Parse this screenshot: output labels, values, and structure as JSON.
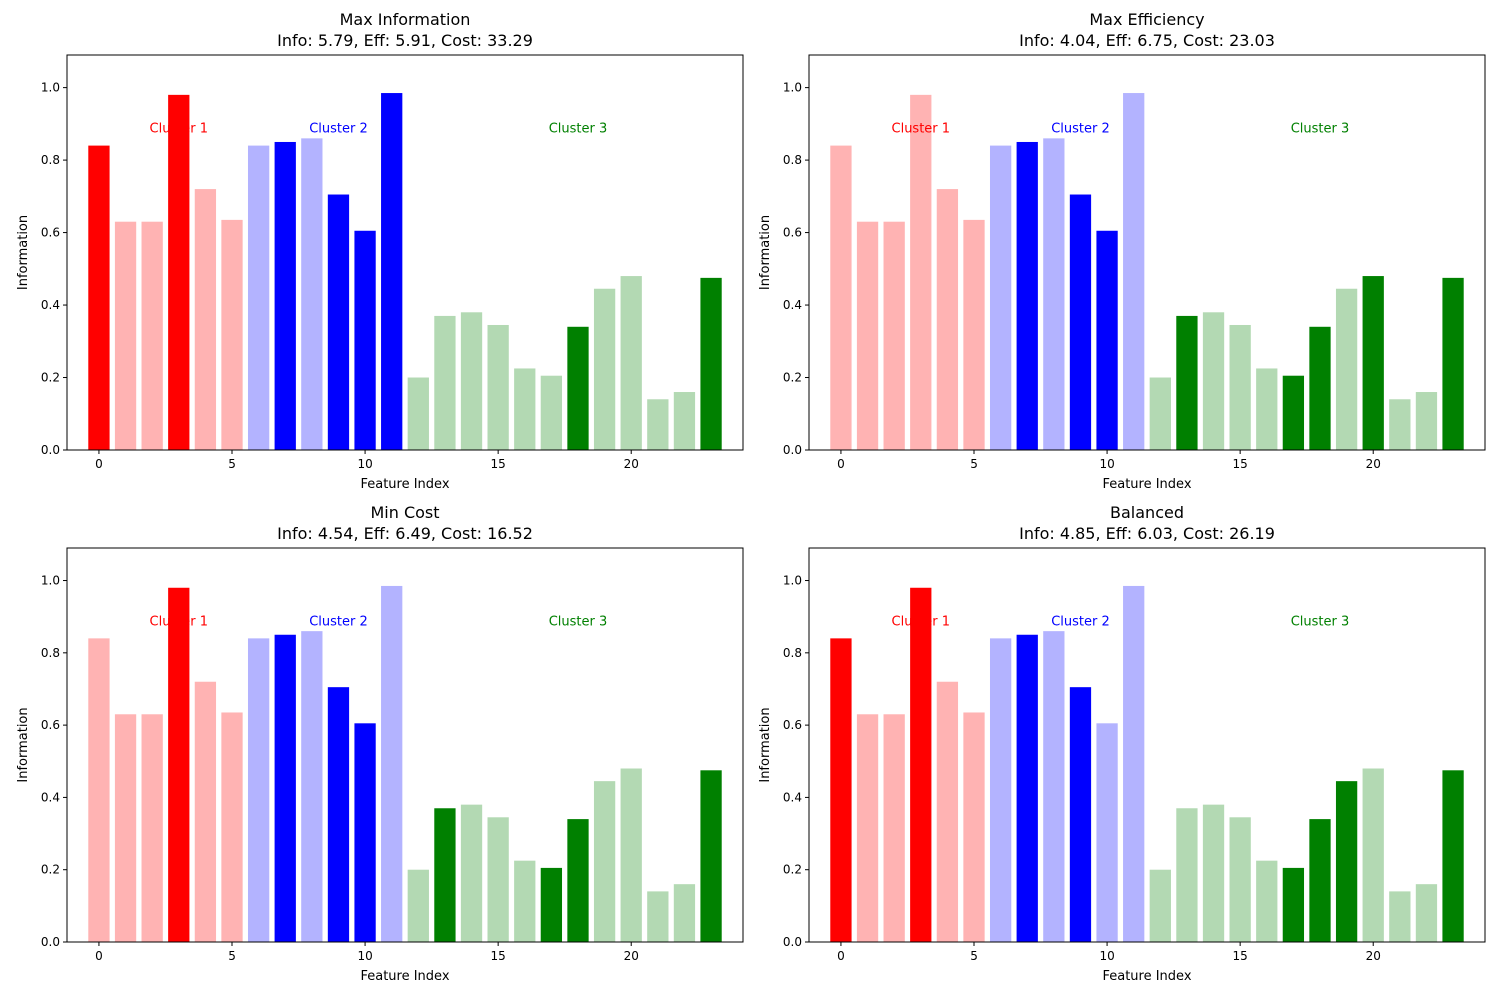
{
  "colors": {
    "cluster_1": {
      "selected": "#ff0000",
      "unselected": "#ffb3b3"
    },
    "cluster_2": {
      "selected": "#0000ff",
      "unselected": "#b3b3ff"
    },
    "cluster_3": {
      "selected": "#008000",
      "unselected": "#b3d9b3"
    }
  },
  "chart_data": [
    {
      "type": "bar",
      "title": "Max Information",
      "subtitle": "Info: 5.79, Eff: 5.91, Cost: 33.29",
      "xlabel": "Feature Index",
      "ylabel": "Information",
      "xlim": [
        -1.2,
        24.2
      ],
      "ylim": [
        0,
        1.09
      ],
      "xticks": [
        0,
        5,
        10,
        15,
        20
      ],
      "yticks": [
        "0.0",
        "0.2",
        "0.4",
        "0.6",
        "0.8",
        "1.0"
      ],
      "x": [
        0,
        1,
        2,
        3,
        4,
        5,
        6,
        7,
        8,
        9,
        10,
        11,
        12,
        13,
        14,
        15,
        16,
        17,
        18,
        19,
        20,
        21,
        22,
        23
      ],
      "values": [
        0.84,
        0.63,
        0.63,
        0.98,
        0.72,
        0.635,
        0.84,
        0.85,
        0.86,
        0.705,
        0.605,
        0.985,
        0.2,
        0.37,
        0.38,
        0.345,
        0.225,
        0.205,
        0.34,
        0.445,
        0.48,
        0.14,
        0.16,
        0.475
      ],
      "clusters": [
        1,
        1,
        1,
        1,
        1,
        1,
        2,
        2,
        2,
        2,
        2,
        2,
        3,
        3,
        3,
        3,
        3,
        3,
        3,
        3,
        3,
        3,
        3,
        3
      ],
      "selected": [
        1,
        0,
        0,
        1,
        0,
        0,
        0,
        1,
        0,
        1,
        1,
        1,
        0,
        0,
        0,
        0,
        0,
        0,
        1,
        0,
        0,
        0,
        0,
        1
      ],
      "annotations": [
        {
          "text": "Cluster 1",
          "cluster": 1,
          "x": 3,
          "y": 0.89
        },
        {
          "text": "Cluster 2",
          "cluster": 2,
          "x": 9,
          "y": 0.89
        },
        {
          "text": "Cluster 3",
          "cluster": 3,
          "x": 18,
          "y": 0.89
        }
      ],
      "grid": false
    },
    {
      "type": "bar",
      "title": "Max Efficiency",
      "subtitle": "Info: 4.04, Eff: 6.75, Cost: 23.03",
      "xlabel": "Feature Index",
      "ylabel": "Information",
      "xlim": [
        -1.2,
        24.2
      ],
      "ylim": [
        0,
        1.09
      ],
      "xticks": [
        0,
        5,
        10,
        15,
        20
      ],
      "yticks": [
        "0.0",
        "0.2",
        "0.4",
        "0.6",
        "0.8",
        "1.0"
      ],
      "x": [
        0,
        1,
        2,
        3,
        4,
        5,
        6,
        7,
        8,
        9,
        10,
        11,
        12,
        13,
        14,
        15,
        16,
        17,
        18,
        19,
        20,
        21,
        22,
        23
      ],
      "values": [
        0.84,
        0.63,
        0.63,
        0.98,
        0.72,
        0.635,
        0.84,
        0.85,
        0.86,
        0.705,
        0.605,
        0.985,
        0.2,
        0.37,
        0.38,
        0.345,
        0.225,
        0.205,
        0.34,
        0.445,
        0.48,
        0.14,
        0.16,
        0.475
      ],
      "clusters": [
        1,
        1,
        1,
        1,
        1,
        1,
        2,
        2,
        2,
        2,
        2,
        2,
        3,
        3,
        3,
        3,
        3,
        3,
        3,
        3,
        3,
        3,
        3,
        3
      ],
      "selected": [
        0,
        0,
        0,
        0,
        0,
        0,
        0,
        1,
        0,
        1,
        1,
        0,
        0,
        1,
        0,
        0,
        0,
        1,
        1,
        0,
        1,
        0,
        0,
        1
      ],
      "annotations": [
        {
          "text": "Cluster 1",
          "cluster": 1,
          "x": 3,
          "y": 0.89
        },
        {
          "text": "Cluster 2",
          "cluster": 2,
          "x": 9,
          "y": 0.89
        },
        {
          "text": "Cluster 3",
          "cluster": 3,
          "x": 18,
          "y": 0.89
        }
      ],
      "grid": false
    },
    {
      "type": "bar",
      "title": "Min Cost",
      "subtitle": "Info: 4.54, Eff: 6.49, Cost: 16.52",
      "xlabel": "Feature Index",
      "ylabel": "Information",
      "xlim": [
        -1.2,
        24.2
      ],
      "ylim": [
        0,
        1.09
      ],
      "xticks": [
        0,
        5,
        10,
        15,
        20
      ],
      "yticks": [
        "0.0",
        "0.2",
        "0.4",
        "0.6",
        "0.8",
        "1.0"
      ],
      "x": [
        0,
        1,
        2,
        3,
        4,
        5,
        6,
        7,
        8,
        9,
        10,
        11,
        12,
        13,
        14,
        15,
        16,
        17,
        18,
        19,
        20,
        21,
        22,
        23
      ],
      "values": [
        0.84,
        0.63,
        0.63,
        0.98,
        0.72,
        0.635,
        0.84,
        0.85,
        0.86,
        0.705,
        0.605,
        0.985,
        0.2,
        0.37,
        0.38,
        0.345,
        0.225,
        0.205,
        0.34,
        0.445,
        0.48,
        0.14,
        0.16,
        0.475
      ],
      "clusters": [
        1,
        1,
        1,
        1,
        1,
        1,
        2,
        2,
        2,
        2,
        2,
        2,
        3,
        3,
        3,
        3,
        3,
        3,
        3,
        3,
        3,
        3,
        3,
        3
      ],
      "selected": [
        0,
        0,
        0,
        1,
        0,
        0,
        0,
        1,
        0,
        1,
        1,
        0,
        0,
        1,
        0,
        0,
        0,
        1,
        1,
        0,
        0,
        0,
        0,
        1
      ],
      "annotations": [
        {
          "text": "Cluster 1",
          "cluster": 1,
          "x": 3,
          "y": 0.89
        },
        {
          "text": "Cluster 2",
          "cluster": 2,
          "x": 9,
          "y": 0.89
        },
        {
          "text": "Cluster 3",
          "cluster": 3,
          "x": 18,
          "y": 0.89
        }
      ],
      "grid": false
    },
    {
      "type": "bar",
      "title": "Balanced",
      "subtitle": "Info: 4.85, Eff: 6.03, Cost: 26.19",
      "xlabel": "Feature Index",
      "ylabel": "Information",
      "xlim": [
        -1.2,
        24.2
      ],
      "ylim": [
        0,
        1.09
      ],
      "xticks": [
        0,
        5,
        10,
        15,
        20
      ],
      "yticks": [
        "0.0",
        "0.2",
        "0.4",
        "0.6",
        "0.8",
        "1.0"
      ],
      "x": [
        0,
        1,
        2,
        3,
        4,
        5,
        6,
        7,
        8,
        9,
        10,
        11,
        12,
        13,
        14,
        15,
        16,
        17,
        18,
        19,
        20,
        21,
        22,
        23
      ],
      "values": [
        0.84,
        0.63,
        0.63,
        0.98,
        0.72,
        0.635,
        0.84,
        0.85,
        0.86,
        0.705,
        0.605,
        0.985,
        0.2,
        0.37,
        0.38,
        0.345,
        0.225,
        0.205,
        0.34,
        0.445,
        0.48,
        0.14,
        0.16,
        0.475
      ],
      "clusters": [
        1,
        1,
        1,
        1,
        1,
        1,
        2,
        2,
        2,
        2,
        2,
        2,
        3,
        3,
        3,
        3,
        3,
        3,
        3,
        3,
        3,
        3,
        3,
        3
      ],
      "selected": [
        1,
        0,
        0,
        1,
        0,
        0,
        0,
        1,
        0,
        1,
        0,
        0,
        0,
        0,
        0,
        0,
        0,
        1,
        1,
        1,
        0,
        0,
        0,
        1
      ],
      "annotations": [
        {
          "text": "Cluster 1",
          "cluster": 1,
          "x": 3,
          "y": 0.89
        },
        {
          "text": "Cluster 2",
          "cluster": 2,
          "x": 9,
          "y": 0.89
        },
        {
          "text": "Cluster 3",
          "cluster": 3,
          "x": 18,
          "y": 0.89
        }
      ],
      "grid": false
    }
  ]
}
